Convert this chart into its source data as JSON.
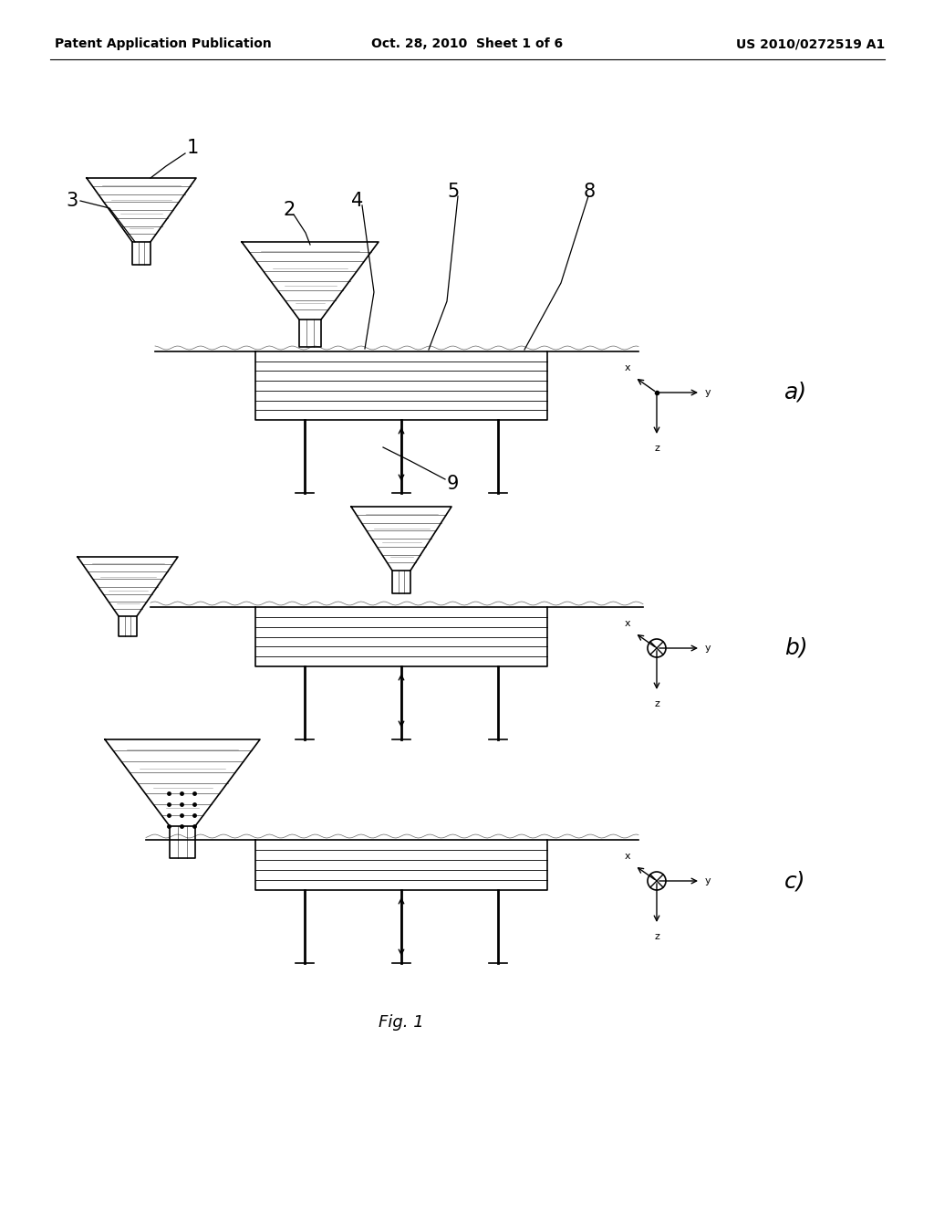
{
  "title_left": "Patent Application Publication",
  "title_center": "Oct. 28, 2010  Sheet 1 of 6",
  "title_right": "US 2010/0272519 A1",
  "fig_label": "Fig. 1",
  "bg_color": "#ffffff",
  "line_color": "#000000"
}
